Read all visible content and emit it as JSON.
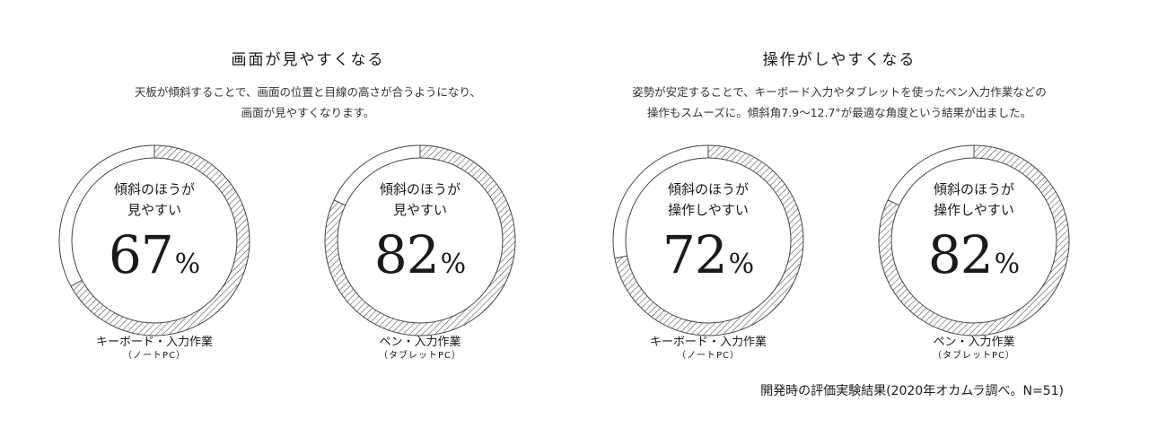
{
  "sections": [
    {
      "title": "画面が見やすくなる",
      "description_lines": [
        "天板が傾斜することで、画面の位置と目線の高さが合うようになり、",
        "画面が見やすくなります。"
      ]
    },
    {
      "title": "操作がしやすくなる",
      "description_lines": [
        "姿勢が安定することで、キーボード入力やタブレットを使ったペン入力作業などの",
        "操作もスムーズに。傾斜角7.9〜12.7°が最適な角度という結果が出ました。"
      ]
    }
  ],
  "chart_data": [
    {
      "type": "pie",
      "center_text": [
        "傾斜のほうが",
        "見やすい"
      ],
      "value": 67,
      "unit": "%",
      "label": "キーボード・入力作業",
      "sublabel": "（ノートPC）"
    },
    {
      "type": "pie",
      "center_text": [
        "傾斜のほうが",
        "見やすい"
      ],
      "value": 82,
      "unit": "%",
      "label": "ペン・入力作業",
      "sublabel": "（タブレットPC）"
    },
    {
      "type": "pie",
      "center_text": [
        "傾斜のほうが",
        "操作しやすい"
      ],
      "value": 72,
      "unit": "%",
      "label": "キーボード・入力作業",
      "sublabel": "（ノートPC）"
    },
    {
      "type": "pie",
      "center_text": [
        "傾斜のほうが",
        "操作しやすい"
      ],
      "value": 82,
      "unit": "%",
      "label": "ペン・入力作業",
      "sublabel": "（タブレットPC）"
    }
  ],
  "footnote": "開発時の評価実験結果(2020年オカムラ調べ。N=51)"
}
